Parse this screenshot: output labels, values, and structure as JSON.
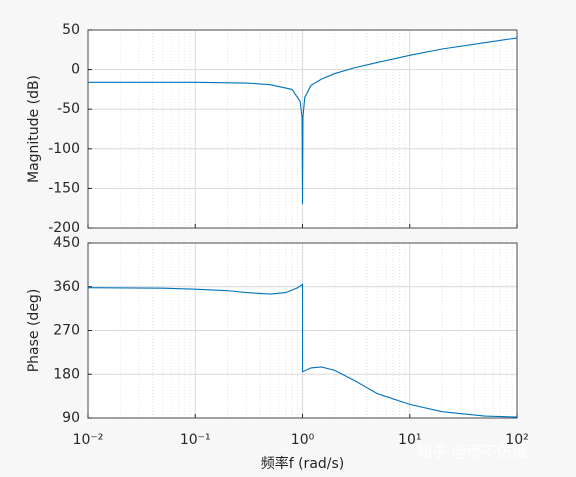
{
  "chart_data": [
    {
      "type": "line",
      "ylabel": "Magnitude (dB)",
      "color": "#0072bd",
      "grid": true,
      "minor_grid": true,
      "xscale": "log",
      "xlim": [
        0.01,
        100
      ],
      "xticks": [
        0.01,
        0.1,
        1,
        10,
        100
      ],
      "ylim": [
        -200,
        50
      ],
      "yticks": [
        -200,
        -150,
        -100,
        -50,
        0,
        50
      ],
      "x": [
        0.01,
        0.1,
        0.3,
        0.5,
        0.8,
        0.95,
        0.99,
        1,
        1.01,
        1.05,
        1.2,
        1.5,
        2,
        3,
        5,
        10,
        20,
        50,
        100
      ],
      "values": [
        -16,
        -16,
        -17,
        -19,
        -25,
        -40,
        -60,
        -170,
        -60,
        -35,
        -20,
        -12,
        -5,
        2,
        9,
        18,
        26,
        34,
        40
      ]
    },
    {
      "type": "line",
      "ylabel": "Phase (deg)",
      "xlabel": "频率f  (rad/s)",
      "color": "#0072bd",
      "grid": true,
      "minor_grid": true,
      "xscale": "log",
      "xlim": [
        0.01,
        100
      ],
      "xticks": [
        {
          "value": 0.01,
          "label": "10⁻²"
        },
        {
          "value": 0.1,
          "label": "10⁻¹"
        },
        {
          "value": 1,
          "label": "10⁰"
        },
        {
          "value": 10,
          "label": "10¹"
        },
        {
          "value": 100,
          "label": "10²"
        }
      ],
      "ylim": [
        90,
        450
      ],
      "yticks": [
        90,
        180,
        270,
        360,
        450
      ],
      "x": [
        0.01,
        0.05,
        0.1,
        0.2,
        0.3,
        0.5,
        0.7,
        0.9,
        0.99,
        1,
        1,
        1.2,
        1.5,
        2,
        3,
        5,
        10,
        20,
        50,
        100
      ],
      "values": [
        358,
        357,
        355,
        352,
        348,
        345,
        348,
        358,
        364,
        365,
        185,
        193,
        195,
        188,
        168,
        140,
        118,
        103,
        94,
        92
      ]
    }
  ],
  "watermark": "知乎 @雨不仿徨"
}
